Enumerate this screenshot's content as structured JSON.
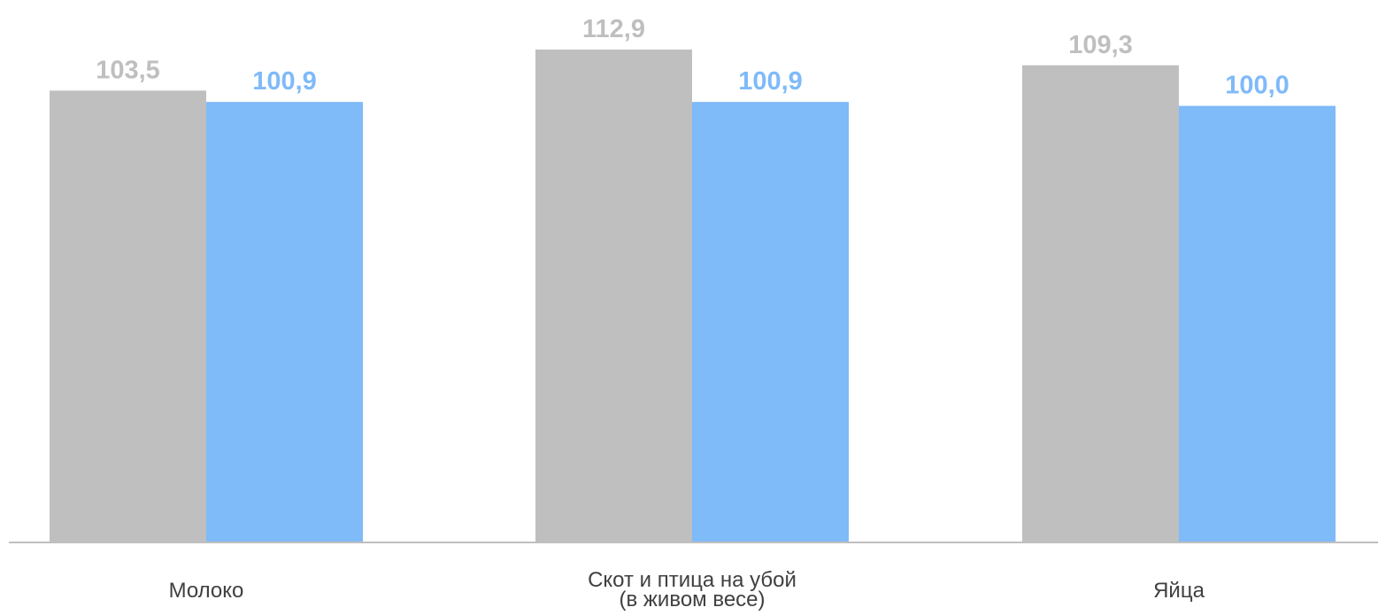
{
  "chart_data": {
    "type": "bar",
    "categories": [
      [
        "Молоко"
      ],
      [
        "Скот и птица на убой",
        "(в живом весе)"
      ],
      [
        "Яйца"
      ]
    ],
    "series": [
      {
        "values": [
          103.5,
          112.9,
          109.3
        ],
        "labels": [
          "103,5",
          "112,9",
          "109,3"
        ],
        "color": "#bfbfbf"
      },
      {
        "values": [
          100.9,
          100.9,
          100.0
        ],
        "labels": [
          "100,9",
          "100,9",
          "100,0"
        ],
        "color": "#7fbaf9"
      }
    ],
    "ylim": [
      0,
      112.9
    ],
    "grid": false,
    "axis_color": "#bfbfbf"
  }
}
